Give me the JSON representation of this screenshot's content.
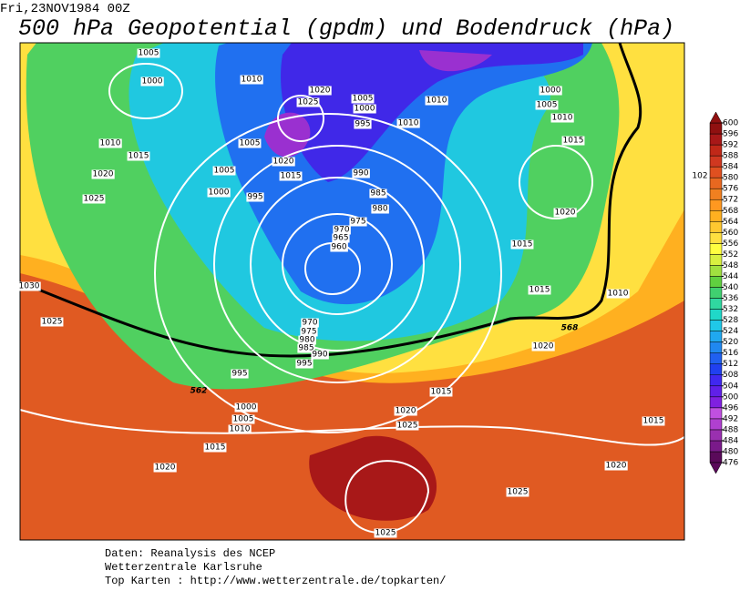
{
  "header": {
    "datetime": "Fri,23NOV1984  00Z",
    "title": "500 hPa Geopotential (gpdm) und Bodendruck (hPa)"
  },
  "colorbar": {
    "ticks": [
      476,
      480,
      484,
      488,
      492,
      496,
      500,
      504,
      508,
      512,
      516,
      520,
      524,
      528,
      532,
      536,
      540,
      544,
      548,
      552,
      556,
      560,
      564,
      568,
      572,
      576,
      580,
      584,
      588,
      592,
      596,
      600
    ],
    "colors": [
      "#5a0a5a",
      "#7a1a8a",
      "#9a30b0",
      "#b040d0",
      "#c050e0",
      "#8020e0",
      "#6020e8",
      "#4028f0",
      "#2040f0",
      "#2060f0",
      "#2088f0",
      "#20a8f0",
      "#20c8e8",
      "#20d8c8",
      "#30d8a0",
      "#40d070",
      "#60d040",
      "#a0e040",
      "#d8f040",
      "#ffff40",
      "#ffe040",
      "#ffc830",
      "#ffb020",
      "#ff9820",
      "#f08020",
      "#e86820",
      "#e05020",
      "#d03820",
      "#c02818",
      "#a81818",
      "#901010"
    ]
  },
  "contour_labels": {
    "isobars": [
      1005,
      1000,
      1010,
      1020,
      1025,
      1005,
      1000,
      995,
      1010,
      1010,
      1000,
      1005,
      1010,
      1015,
      1010,
      1015,
      1005,
      1020,
      1015,
      1005,
      1020,
      1025,
      1000,
      995,
      990,
      985,
      980,
      975,
      970,
      965,
      960,
      1020,
      1015,
      102,
      1030,
      1025,
      1015,
      1010,
      970,
      975,
      980,
      985,
      990,
      995,
      995,
      1020,
      1015,
      1000,
      1005,
      1010,
      1020,
      1025,
      1015,
      1015,
      1020,
      1020,
      1025,
      1025
    ],
    "geopotential": [
      568,
      562
    ]
  },
  "footer": [
    "Daten: Reanalysis des NCEP",
    "Wetterzentrale Karlsruhe",
    "Top Karten :  http://www.wetterzentrale.de/topkarten/"
  ]
}
